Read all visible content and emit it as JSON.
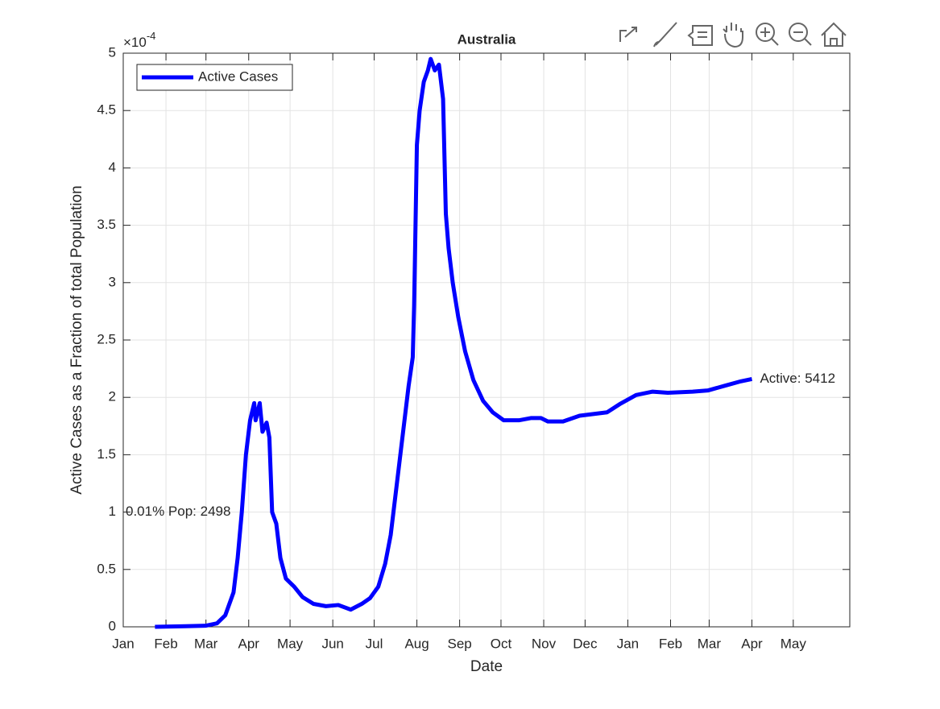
{
  "chart_data": {
    "type": "line",
    "title": "Australia",
    "xlabel": "Date",
    "ylabel": "Active Cases as a Fraction of total Population",
    "y_multiplier": {
      "base": "×10",
      "exponent": "-4"
    },
    "annotations": [
      "Active: 5412",
      "0.01% Pop: 2498"
    ],
    "x": [
      23,
      45,
      60,
      68,
      74,
      80,
      83,
      86,
      89,
      92,
      95,
      96,
      99,
      101,
      104,
      106,
      108,
      111,
      114,
      118,
      124,
      130,
      138,
      147,
      156,
      165,
      173,
      179,
      185,
      190,
      194,
      198,
      203,
      207,
      210,
      211,
      213,
      215,
      218,
      221,
      223,
      226,
      229,
      232,
      234,
      236,
      239,
      243,
      248,
      254,
      261,
      268,
      276,
      287,
      296,
      303,
      308,
      319,
      331,
      351,
      360,
      372,
      384,
      395,
      413,
      424,
      436,
      448,
      456
    ],
    "series": [
      {
        "name": "Active Cases",
        "color": "#0000ff",
        "values": [
          0,
          0.005,
          0.01,
          0.03,
          0.1,
          0.3,
          0.6,
          1.0,
          1.5,
          1.8,
          1.95,
          1.8,
          1.95,
          1.7,
          1.78,
          1.65,
          1.0,
          0.9,
          0.6,
          0.42,
          0.35,
          0.26,
          0.2,
          0.18,
          0.19,
          0.15,
          0.2,
          0.25,
          0.35,
          0.55,
          0.8,
          1.2,
          1.7,
          2.1,
          2.35,
          2.8,
          4.2,
          4.5,
          4.75,
          4.85,
          4.95,
          4.85,
          4.9,
          4.6,
          3.6,
          3.3,
          3.0,
          2.7,
          2.4,
          2.15,
          1.97,
          1.87,
          1.8,
          1.8,
          1.82,
          1.82,
          1.79,
          1.79,
          1.84,
          1.87,
          1.94,
          2.02,
          2.05,
          2.04,
          2.05,
          2.06,
          2.1,
          2.14,
          2.16
        ]
      }
    ],
    "xlim": [
      0,
      527
    ],
    "xticks": [
      {
        "value": 0,
        "label": "Jan"
      },
      {
        "value": 31,
        "label": "Feb"
      },
      {
        "value": 60,
        "label": "Mar"
      },
      {
        "value": 91,
        "label": "Apr"
      },
      {
        "value": 121,
        "label": "May"
      },
      {
        "value": 152,
        "label": "Jun"
      },
      {
        "value": 182,
        "label": "Jul"
      },
      {
        "value": 213,
        "label": "Aug"
      },
      {
        "value": 244,
        "label": "Sep"
      },
      {
        "value": 274,
        "label": "Oct"
      },
      {
        "value": 305,
        "label": "Nov"
      },
      {
        "value": 335,
        "label": "Dec"
      },
      {
        "value": 366,
        "label": "Jan"
      },
      {
        "value": 397,
        "label": "Feb"
      },
      {
        "value": 425,
        "label": "Mar"
      },
      {
        "value": 456,
        "label": "Apr"
      },
      {
        "value": 486,
        "label": "May"
      }
    ],
    "ylim": [
      0,
      5
    ],
    "yticks": [
      0,
      0.5,
      1,
      1.5,
      2,
      2.5,
      3,
      3.5,
      4,
      4.5,
      5
    ],
    "grid": true,
    "legend": "top-left"
  }
}
